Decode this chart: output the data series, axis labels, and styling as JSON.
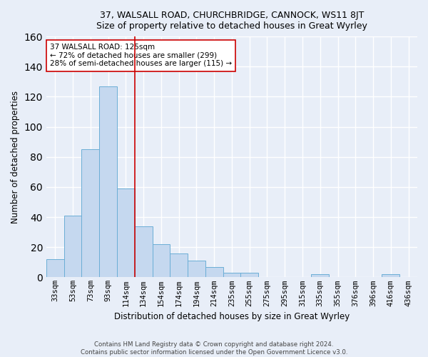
{
  "title": "37, WALSALL ROAD, CHURCHBRIDGE, CANNOCK, WS11 8JT",
  "subtitle": "Size of property relative to detached houses in Great Wyrley",
  "xlabel": "Distribution of detached houses by size in Great Wyrley",
  "ylabel": "Number of detached properties",
  "footer_line1": "Contains HM Land Registry data © Crown copyright and database right 2024.",
  "footer_line2": "Contains public sector information licensed under the Open Government Licence v3.0.",
  "categories": [
    "33sqm",
    "53sqm",
    "73sqm",
    "93sqm",
    "114sqm",
    "134sqm",
    "154sqm",
    "174sqm",
    "194sqm",
    "214sqm",
    "235sqm",
    "255sqm",
    "275sqm",
    "295sqm",
    "315sqm",
    "335sqm",
    "355sqm",
    "376sqm",
    "396sqm",
    "416sqm",
    "436sqm"
  ],
  "values": [
    12,
    41,
    85,
    127,
    59,
    34,
    22,
    16,
    11,
    7,
    3,
    3,
    0,
    0,
    0,
    2,
    0,
    0,
    0,
    2,
    0
  ],
  "bar_color": "#c5d8ef",
  "bar_edge_color": "#6baed6",
  "background_color": "#e8eef8",
  "grid_color": "#ffffff",
  "vline_x": 4.5,
  "vline_color": "#cc0000",
  "annotation_text": "37 WALSALL ROAD: 125sqm\n← 72% of detached houses are smaller (299)\n28% of semi-detached houses are larger (115) →",
  "annotation_box_color": "#ffffff",
  "annotation_box_edge": "#cc0000",
  "ylim": [
    0,
    160
  ],
  "yticks": [
    0,
    20,
    40,
    60,
    80,
    100,
    120,
    140,
    160
  ]
}
